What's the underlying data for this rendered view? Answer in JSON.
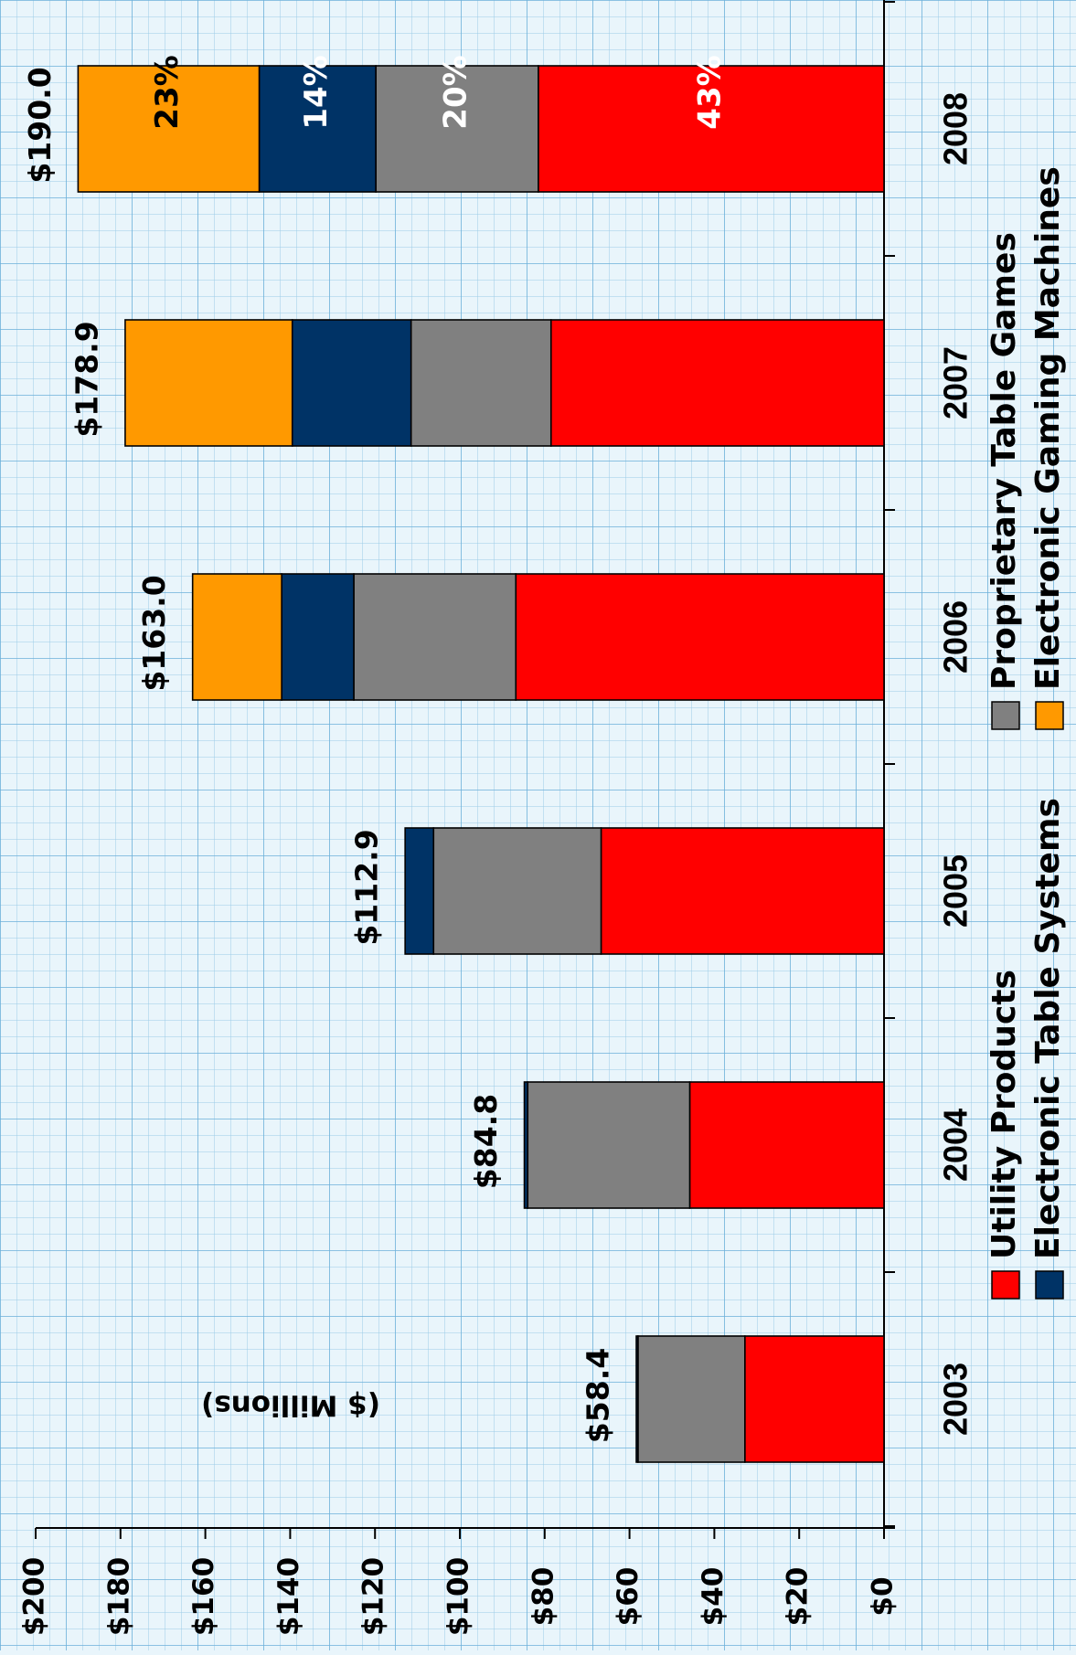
{
  "chart_data": {
    "type": "bar",
    "stacked": true,
    "orientation": "image rotated 90° clockwise (values increase upward)",
    "unit_label": "($ Millions)",
    "categories": [
      "2003",
      "2004",
      "2005",
      "2006",
      "2007",
      "2008"
    ],
    "totals": [
      "$58.4",
      "$84.8",
      "$112.9",
      "$163.0",
      "$178.9",
      "$190.0"
    ],
    "ylim": [
      0,
      200
    ],
    "y_ticks": [
      "$0",
      "$20",
      "$40",
      "$60",
      "$80",
      "$100",
      "$120",
      "$140",
      "$160",
      "$180",
      "$200"
    ],
    "grid": true,
    "series": [
      {
        "name": "Utility Products",
        "color": "#ff0000",
        "values": [
          32.8,
          45.8,
          66.7,
          86.8,
          78.5,
          81.5
        ]
      },
      {
        "name": "Proprietary Table Games",
        "color": "#808080",
        "values": [
          25.2,
          38.2,
          39.5,
          38.2,
          33.0,
          38.3
        ]
      },
      {
        "name": "Electronic Table Systems",
        "color": "#003366",
        "values": [
          0.4,
          0.8,
          6.7,
          17.0,
          28.0,
          27.5
        ]
      },
      {
        "name": "Electronic Gaming Machines",
        "color": "#ff9900",
        "values": [
          0,
          0,
          0,
          21.0,
          39.4,
          42.7
        ]
      }
    ],
    "annotations": {
      "category": "2008",
      "labels": [
        "43%",
        "20%",
        "14%",
        "23%"
      ],
      "colors": [
        "#ffffff",
        "#ffffff",
        "#ffffff",
        "#000000"
      ]
    }
  }
}
